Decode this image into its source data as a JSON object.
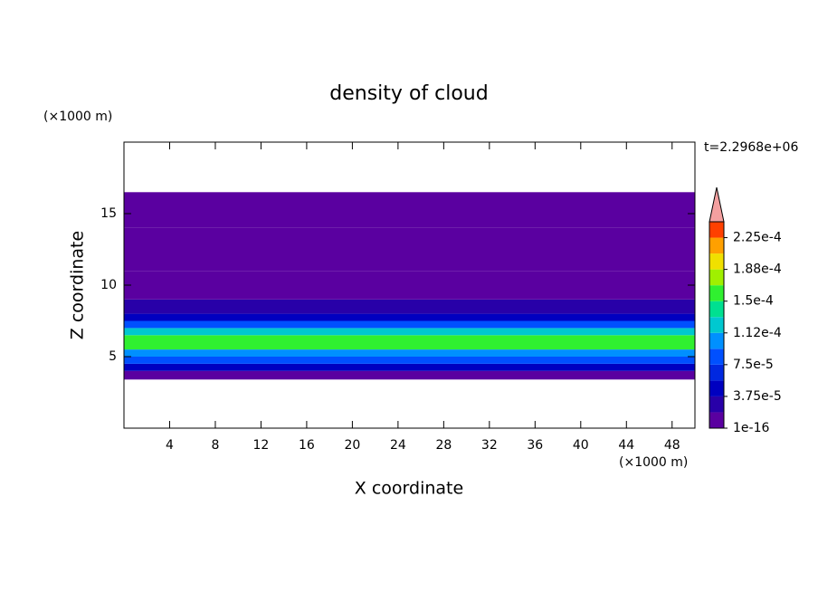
{
  "chart_data": {
    "type": "contour-profile",
    "title": "density of cloud",
    "x_label": "X coordinate",
    "y_label": "Z coordinate",
    "x_unit": "(×1000 m)",
    "y_unit": "(×1000 m)",
    "time_label": "t=2.2968e+06",
    "xlim": [
      0,
      50
    ],
    "ylim": [
      0,
      20
    ],
    "xticks": [
      4,
      8,
      12,
      16,
      20,
      24,
      28,
      32,
      36,
      40,
      44,
      48
    ],
    "yticks": [
      5,
      10,
      15
    ],
    "z_edges": [
      3.4,
      4,
      4.5,
      5,
      5.5,
      6.5,
      7,
      7.5,
      8,
      9,
      11,
      14,
      16.5
    ],
    "values": [
      1e-05,
      4e-05,
      8e-05,
      0.00011,
      0.00016,
      0.00013,
      9e-05,
      5e-05,
      3e-05,
      1.5e-05,
      5e-06,
      1e-06
    ],
    "levels": [
      1e-16,
      1.875e-05,
      3.75e-05,
      5.625e-05,
      7.5e-05,
      9.375e-05,
      0.0001125,
      0.00013125,
      0.00015,
      0.00016875,
      0.0001875,
      0.00020625,
      0.000225,
      0.00024375
    ],
    "colors": [
      "#5a00a0",
      "#2800a8",
      "#0000c0",
      "#0028e0",
      "#0050ff",
      "#0090ff",
      "#00c8d0",
      "#00e090",
      "#30f030",
      "#a0f000",
      "#f0e000",
      "#ffa000",
      "#ff4000"
    ],
    "overflow_color": "#f4a0a0",
    "colorbar_ticks": [
      {
        "value": 1e-16,
        "label": "1e-16"
      },
      {
        "value": 3.75e-05,
        "label": "3.75e-5"
      },
      {
        "value": 7.5e-05,
        "label": "7.5e-5"
      },
      {
        "value": 0.0001125,
        "label": "1.12e-4"
      },
      {
        "value": 0.00015,
        "label": "1.5e-4"
      },
      {
        "value": 0.0001875,
        "label": "1.88e-4"
      },
      {
        "value": 0.000225,
        "label": "2.25e-4"
      }
    ]
  }
}
